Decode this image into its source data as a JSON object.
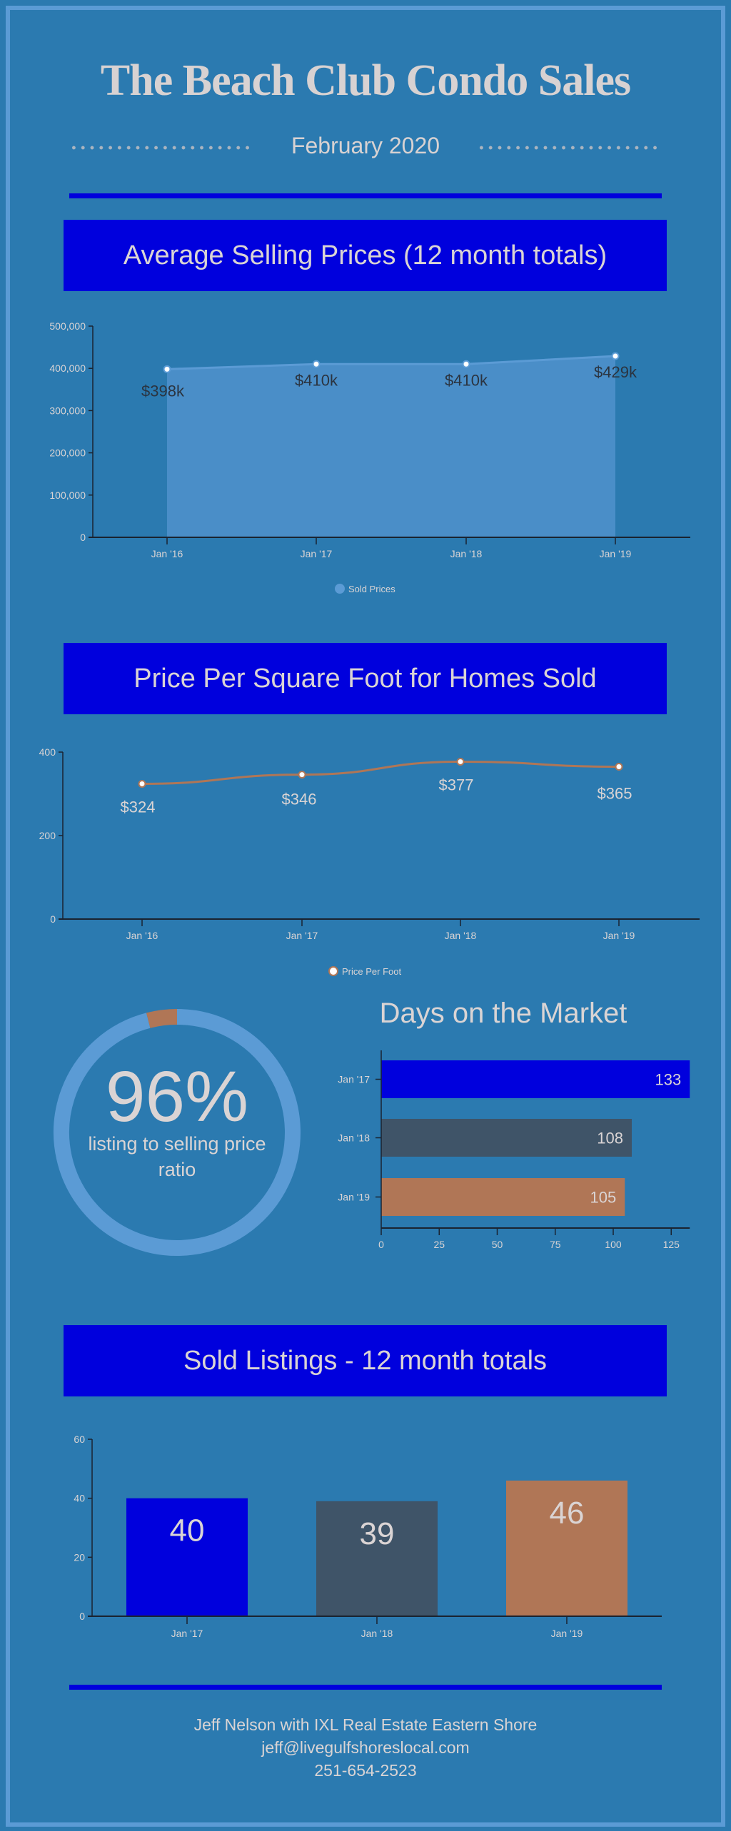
{
  "header": {
    "title": "The Beach Club Condo Sales",
    "date": "February 2020"
  },
  "colors": {
    "background": "#2b7ab0",
    "border": "#5b9bd5",
    "accent_blue": "#0000dd",
    "slate": "#3f5468",
    "brown": "#b07656",
    "area_fill": "#4a8ec8",
    "text": "#dad4d4"
  },
  "sections": {
    "avg_price_title": "Average Selling Prices (12 month totals)",
    "ppsf_title": "Price Per Square Foot for Homes Sold",
    "dom_title": "Days on the Market",
    "sold_title": "Sold Listings - 12 month totals"
  },
  "ratio": {
    "value": 96,
    "label": "96%",
    "caption_line1": "listing to selling price",
    "caption_line2": "ratio"
  },
  "footer": {
    "line1": "Jeff Nelson with IXL Real Estate Eastern Shore",
    "email": "jeff@livegulfshoreslocal.com",
    "phone": "251-654-2523"
  },
  "chart_data": [
    {
      "type": "area",
      "categories": [
        "Jan '16",
        "Jan '17",
        "Jan '18",
        "Jan '19"
      ],
      "series": [
        {
          "name": "Sold Prices",
          "values": [
            398000,
            410000,
            410000,
            429000
          ],
          "labels": [
            "$398k",
            "$410k",
            "$410k",
            "$429k"
          ],
          "color": "#5b9bd5"
        }
      ],
      "yticks": [
        "0",
        "100,000",
        "200,000",
        "300,000",
        "400,000",
        "500,000"
      ],
      "ylim": [
        0,
        500000
      ],
      "legend": "bottom"
    },
    {
      "type": "line",
      "categories": [
        "Jan '16",
        "Jan '17",
        "Jan '18",
        "Jan '19"
      ],
      "series": [
        {
          "name": "Price Per Foot",
          "values": [
            324,
            346,
            377,
            365
          ],
          "labels": [
            "$324",
            "$346",
            "$377",
            "$365"
          ],
          "color": "#b07656"
        }
      ],
      "yticks": [
        "0",
        "200",
        "400"
      ],
      "ylim": [
        0,
        400
      ],
      "legend": "bottom"
    },
    {
      "type": "pie",
      "title": "listing to selling price ratio",
      "values": [
        96,
        4
      ],
      "colors": [
        "#5b9bd5",
        "#b07656"
      ]
    },
    {
      "type": "bar",
      "orientation": "horizontal",
      "title": "Days on the Market",
      "categories": [
        "Jan '17",
        "Jan '18",
        "Jan '19"
      ],
      "values": [
        133,
        108,
        105
      ],
      "labels": [
        "133",
        "108",
        "105"
      ],
      "colors": [
        "#0000dd",
        "#3f5468",
        "#b07656"
      ],
      "xticks": [
        "0",
        "25",
        "50",
        "75",
        "100",
        "125"
      ],
      "xlim": [
        0,
        133
      ]
    },
    {
      "type": "bar",
      "title": "Sold Listings - 12 month totals",
      "categories": [
        "Jan '17",
        "Jan '18",
        "Jan '19"
      ],
      "values": [
        40,
        39,
        46
      ],
      "labels": [
        "40",
        "39",
        "46"
      ],
      "colors": [
        "#0000dd",
        "#3f5468",
        "#b07656"
      ],
      "yticks": [
        "0",
        "20",
        "40",
        "60"
      ],
      "ylim": [
        0,
        60
      ]
    }
  ]
}
